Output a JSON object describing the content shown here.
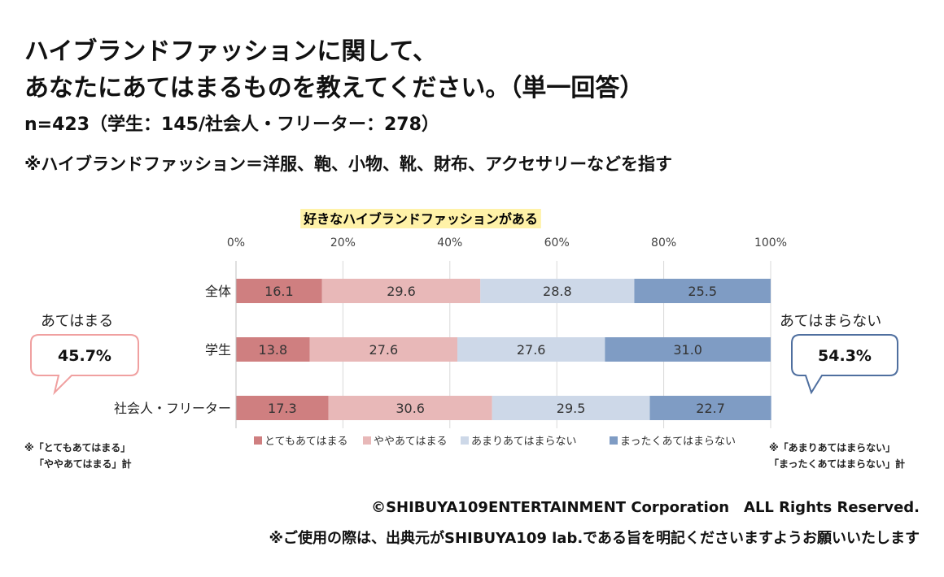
{
  "title_line1": "ハイブランドファッションに関して、",
  "title_line2": "あなたにあてはまるものを教えてください。（単一回答）",
  "sample_line": "n=423（学生：145/社会人・フリーター：278）",
  "definition_line": "※ハイブランドファッション＝洋服、鞄、小物、靴、財布、アクセサリーなどを指す",
  "chart_data": {
    "type": "stacked-bar-horizontal",
    "title": "好きなハイブランドファッションがある",
    "categories": [
      "全体",
      "学生",
      "社会人・フリーター"
    ],
    "series": [
      {
        "name": "とてもあてはまる",
        "values": [
          16.1,
          13.8,
          17.3
        ],
        "color": "#cf7f80"
      },
      {
        "name": "ややあてはまる",
        "values": [
          29.6,
          27.6,
          30.6
        ],
        "color": "#e8b8b8"
      },
      {
        "name": "あまりあてはまらない",
        "values": [
          28.8,
          27.6,
          29.5
        ],
        "color": "#cdd8e8"
      },
      {
        "name": "まったくあてはまらない",
        "values": [
          25.5,
          31.0,
          22.7
        ],
        "color": "#7f9cc4"
      }
    ],
    "xlim": [
      0,
      100
    ],
    "ticks": [
      "0%",
      "20%",
      "40%",
      "60%",
      "80%",
      "100%"
    ],
    "title_bg": "#fff2a8"
  },
  "left_callout": {
    "label": "あてはまる",
    "value": "45.7%",
    "note_line1": "※「とてもあてはまる」",
    "note_line2": "「ややあてはまる」計",
    "color": "#f0a0a0"
  },
  "right_callout": {
    "label": "あてはまらない",
    "value": "54.3%",
    "note_line1": "※「あまりあてはまらない」",
    "note_line2": "「まったくあてはまらない」計",
    "color": "#4f6f9f"
  },
  "copyright": "©SHIBUYA109ENTERTAINMENT Corporation　ALL Rights Reserved.",
  "usage_note": "※ご使用の際は、出典元がSHIBUYA109 lab.である旨を明記くださいますようお願いいたします"
}
